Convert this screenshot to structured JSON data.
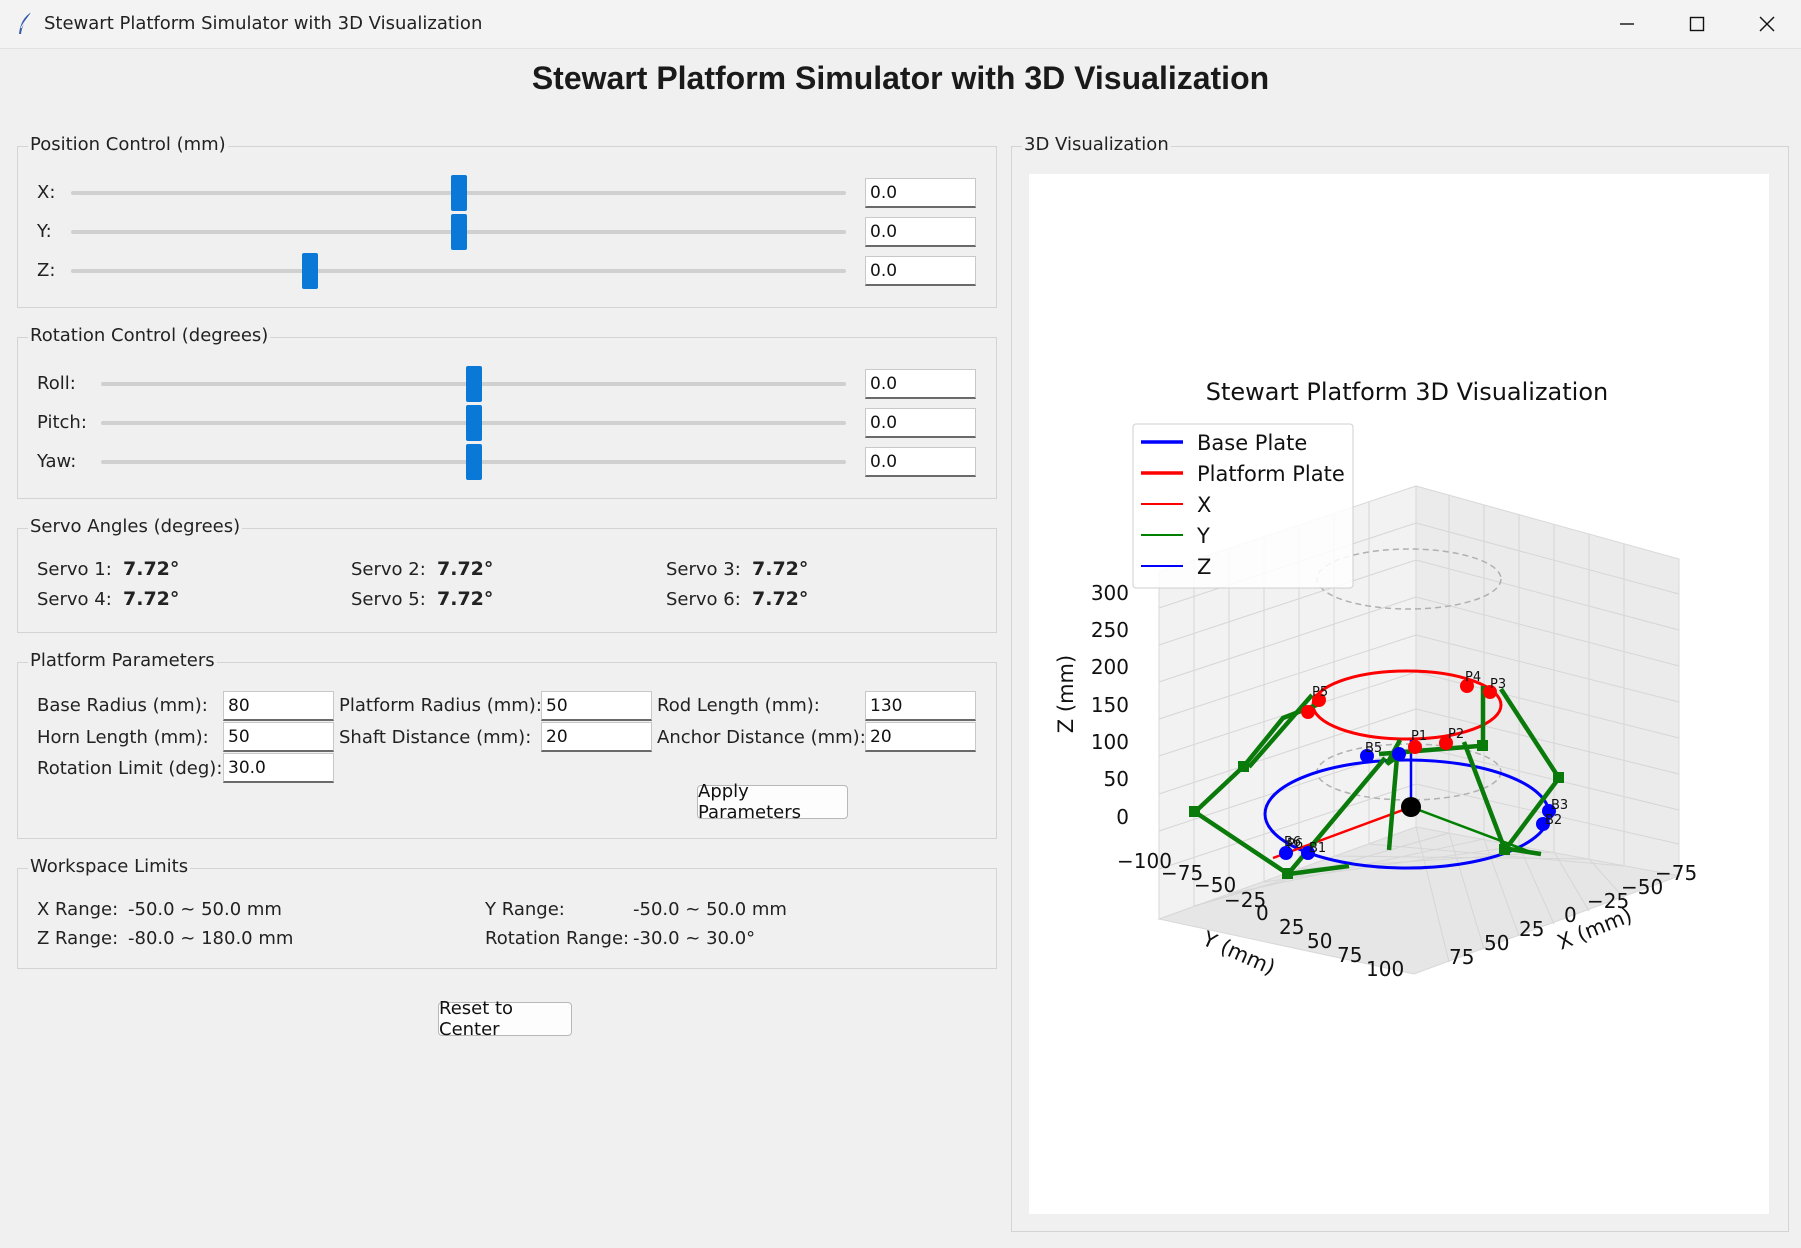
{
  "window": {
    "title": "Stewart Platform Simulator with 3D Visualization"
  },
  "heading": "Stewart Platform Simulator with 3D Visualization",
  "position": {
    "label": "Position Control (mm)",
    "rows": [
      {
        "label": "X:",
        "value": "0.0",
        "fraction": 0.5
      },
      {
        "label": "Y:",
        "value": "0.0",
        "fraction": 0.5
      },
      {
        "label": "Z:",
        "value": "0.0",
        "fraction": 0.308
      }
    ]
  },
  "rotation": {
    "label": "Rotation Control (degrees)",
    "rows": [
      {
        "label": "Roll:",
        "value": "0.0",
        "fraction": 0.5
      },
      {
        "label": "Pitch:",
        "value": "0.0",
        "fraction": 0.5
      },
      {
        "label": "Yaw:",
        "value": "0.0",
        "fraction": 0.5
      }
    ]
  },
  "servo": {
    "label": "Servo Angles (degrees)",
    "items": [
      {
        "label": "Servo 1:",
        "value": "7.72°"
      },
      {
        "label": "Servo 2:",
        "value": "7.72°"
      },
      {
        "label": "Servo 3:",
        "value": "7.72°"
      },
      {
        "label": "Servo 4:",
        "value": "7.72°"
      },
      {
        "label": "Servo 5:",
        "value": "7.72°"
      },
      {
        "label": "Servo 6:",
        "value": "7.72°"
      }
    ]
  },
  "params": {
    "label": "Platform Parameters",
    "base_radius_label": "Base Radius (mm):",
    "base_radius": "80",
    "platform_radius_label": "Platform Radius (mm):",
    "platform_radius": "50",
    "rod_length_label": "Rod Length (mm):",
    "rod_length": "130",
    "horn_length_label": "Horn Length (mm):",
    "horn_length": "50",
    "shaft_distance_label": "Shaft Distance (mm):",
    "shaft_distance": "20",
    "anchor_distance_label": "Anchor Distance (mm):",
    "anchor_distance": "20",
    "rotation_limit_label": "Rotation Limit (deg):",
    "rotation_limit": "30.0",
    "apply_label": "Apply Parameters"
  },
  "workspace": {
    "label": "Workspace Limits",
    "x_label": "X Range:",
    "x_value": "-50.0 ~ 50.0 mm",
    "y_label": "Y Range:",
    "y_value": "-50.0 ~ 50.0 mm",
    "z_label": "Z Range:",
    "z_value": "-80.0 ~ 180.0 mm",
    "r_label": "Rotation Range:",
    "r_value": "-30.0 ~ 30.0°"
  },
  "reset_label": "Reset to Center",
  "viz": {
    "label": "3D Visualization",
    "chart_title": "Stewart Platform 3D Visualization",
    "legend": [
      {
        "name": "Base Plate",
        "color": "#0000ff"
      },
      {
        "name": "Platform Plate",
        "color": "#ff0000"
      },
      {
        "name": "X",
        "color": "#ff0000"
      },
      {
        "name": "Y",
        "color": "#008000"
      },
      {
        "name": "Z",
        "color": "#0000ff"
      }
    ],
    "z_ticks": [
      "300",
      "250",
      "200",
      "150",
      "100",
      "50",
      "0"
    ],
    "y_ticks": [
      "−100",
      "−75",
      "−50",
      "−25",
      "0",
      "25",
      "50",
      "75",
      "100"
    ],
    "x_ticks": [
      "75",
      "50",
      "25",
      "0",
      "−25",
      "−50",
      "−75"
    ],
    "z_axis_label": "Z (mm)",
    "y_axis_label": "Y (mm)",
    "x_axis_label": "X (mm)",
    "point_labels": [
      "P1",
      "P2",
      "P3",
      "P4",
      "P5",
      "P6",
      "B1",
      "B2",
      "B3",
      "B5",
      "B6"
    ]
  }
}
